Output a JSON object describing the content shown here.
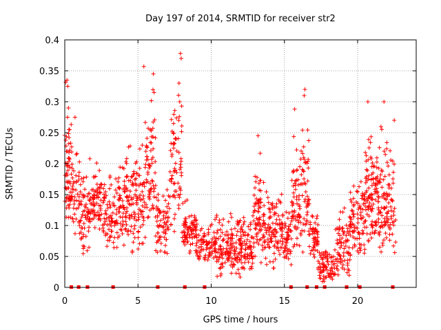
{
  "chart_data": {
    "type": "scatter",
    "title": "Day 197 of 2014, SRMTID for receiver str2",
    "xlabel": "GPS time / hours",
    "ylabel": "SRMTID / TECUs",
    "xlim": [
      0,
      24
    ],
    "ylim": [
      0,
      0.4
    ],
    "xticks": [
      "0",
      "5",
      "10",
      "15",
      "20"
    ],
    "yticks": [
      "0",
      "0.05",
      "0.1",
      "0.15",
      "0.2",
      "0.25",
      "0.3",
      "0.35",
      "0.4"
    ],
    "grid": true,
    "marker": "plus",
    "color": "#ff0000",
    "clusters": [
      {
        "x": [
          0.0,
          0.4
        ],
        "y": [
          0.08,
          0.34
        ],
        "n": 60
      },
      {
        "x": [
          0.4,
          1.0
        ],
        "y": [
          0.08,
          0.28
        ],
        "n": 50
      },
      {
        "x": [
          1.0,
          1.7
        ],
        "y": [
          0.05,
          0.21
        ],
        "n": 60
      },
      {
        "x": [
          1.7,
          2.8
        ],
        "y": [
          0.07,
          0.23
        ],
        "n": 90
      },
      {
        "x": [
          2.8,
          3.6
        ],
        "y": [
          0.05,
          0.2
        ],
        "n": 60
      },
      {
        "x": [
          3.6,
          4.6
        ],
        "y": [
          0.05,
          0.26
        ],
        "n": 90
      },
      {
        "x": [
          4.6,
          5.5
        ],
        "y": [
          0.04,
          0.27
        ],
        "n": 80
      },
      {
        "x": [
          5.5,
          6.2
        ],
        "y": [
          0.08,
          0.35
        ],
        "n": 70
      },
      {
        "x": [
          6.2,
          7.1
        ],
        "y": [
          0.03,
          0.2
        ],
        "n": 70
      },
      {
        "x": [
          7.1,
          8.0
        ],
        "y": [
          0.06,
          0.38
        ],
        "n": 70
      },
      {
        "x": [
          8.0,
          9.0
        ],
        "y": [
          0.05,
          0.15
        ],
        "n": 80
      },
      {
        "x": [
          9.0,
          10.2
        ],
        "y": [
          0.03,
          0.12
        ],
        "n": 70
      },
      {
        "x": [
          10.2,
          11.5
        ],
        "y": [
          0.01,
          0.14
        ],
        "n": 110
      },
      {
        "x": [
          11.5,
          12.9
        ],
        "y": [
          0.01,
          0.14
        ],
        "n": 120
      },
      {
        "x": [
          12.9,
          13.4
        ],
        "y": [
          0.03,
          0.25
        ],
        "n": 60
      },
      {
        "x": [
          13.4,
          14.5
        ],
        "y": [
          0.02,
          0.19
        ],
        "n": 90
      },
      {
        "x": [
          14.5,
          15.5
        ],
        "y": [
          0.03,
          0.16
        ],
        "n": 80
      },
      {
        "x": [
          15.5,
          16.1
        ],
        "y": [
          0.04,
          0.29
        ],
        "n": 60
      },
      {
        "x": [
          16.1,
          16.7
        ],
        "y": [
          0.03,
          0.32
        ],
        "n": 55
      },
      {
        "x": [
          16.7,
          17.3
        ],
        "y": [
          0.04,
          0.15
        ],
        "n": 50
      },
      {
        "x": [
          17.3,
          18.5
        ],
        "y": [
          0.0,
          0.08
        ],
        "n": 80
      },
      {
        "x": [
          18.5,
          19.5
        ],
        "y": [
          0.0,
          0.16
        ],
        "n": 80
      },
      {
        "x": [
          19.5,
          20.5
        ],
        "y": [
          0.04,
          0.2
        ],
        "n": 80
      },
      {
        "x": [
          20.5,
          21.2
        ],
        "y": [
          0.05,
          0.3
        ],
        "n": 80
      },
      {
        "x": [
          21.2,
          21.9
        ],
        "y": [
          0.04,
          0.3
        ],
        "n": 80
      },
      {
        "x": [
          21.9,
          22.6
        ],
        "y": [
          0.03,
          0.28
        ],
        "n": 60
      }
    ],
    "peaks": [
      {
        "x": 0.15,
        "y": 0.335
      },
      {
        "x": 0.2,
        "y": 0.325
      },
      {
        "x": 0.25,
        "y": 0.29
      },
      {
        "x": 0.7,
        "y": 0.275
      },
      {
        "x": 5.4,
        "y": 0.357
      },
      {
        "x": 6.05,
        "y": 0.345
      },
      {
        "x": 6.1,
        "y": 0.315
      },
      {
        "x": 7.9,
        "y": 0.378
      },
      {
        "x": 7.95,
        "y": 0.37
      },
      {
        "x": 7.8,
        "y": 0.33
      },
      {
        "x": 7.85,
        "y": 0.3
      },
      {
        "x": 13.2,
        "y": 0.245
      },
      {
        "x": 15.7,
        "y": 0.288
      },
      {
        "x": 16.4,
        "y": 0.32
      },
      {
        "x": 16.35,
        "y": 0.31
      },
      {
        "x": 20.7,
        "y": 0.3
      },
      {
        "x": 21.8,
        "y": 0.3
      },
      {
        "x": 22.5,
        "y": 0.27
      }
    ],
    "gap_markers_x": [
      0.45,
      0.95,
      1.55,
      3.3,
      6.35,
      8.2,
      9.55,
      15.45,
      16.55,
      17.2,
      17.75,
      19.25,
      20.15,
      22.4
    ]
  }
}
